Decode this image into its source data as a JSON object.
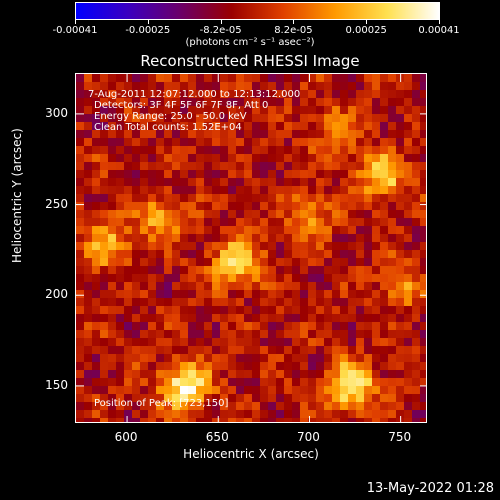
{
  "colorbar": {
    "tick_labels": [
      "-0.00041",
      "-0.00025",
      "-8.2e-05",
      "8.2e-05",
      "0.00025",
      "0.00041"
    ],
    "unit_label": "(photons cm⁻² s⁻¹ asec⁻²)",
    "colors": [
      "#0000ff",
      "#3a00c0",
      "#6a006a",
      "#9a0000",
      "#e04000",
      "#ff9a00",
      "#ffe050",
      "#ffffff"
    ]
  },
  "annotations": {
    "time_range": "7-Aug-2011 12:07:12.000 to 12:13:12.000",
    "detectors": "Detectors: 3F 4F 5F 6F 7F 8F, Att 0",
    "energy_range": "Energy Range: 25.0 - 50.0 keV",
    "clean_counts": "Clean     Total counts: 1.52E+04",
    "peak_position": "Position of Peak:  [723,150]"
  },
  "timestamp": "13-May-2022 01:28",
  "chart_data": {
    "type": "heatmap",
    "title": "Reconstructed RHESSI Image",
    "xlabel": "Heliocentric X (arcsec)",
    "ylabel": "Heliocentric Y (arcsec)",
    "xlim": [
      572,
      765
    ],
    "ylim": [
      129,
      322
    ],
    "x_ticks": [
      600,
      650,
      700,
      750
    ],
    "y_ticks": [
      150,
      200,
      250,
      300
    ],
    "value_range": [
      -0.00041,
      0.00041
    ],
    "peak": [
      723,
      150
    ],
    "sources": [
      {
        "x": 632,
        "y": 150,
        "value": 0.00041
      },
      {
        "x": 723,
        "y": 150,
        "value": 0.00041
      },
      {
        "x": 660,
        "y": 218,
        "value": 0.00035
      },
      {
        "x": 740,
        "y": 265,
        "value": 0.0003
      },
      {
        "x": 590,
        "y": 228,
        "value": 0.00025
      },
      {
        "x": 618,
        "y": 242,
        "value": 0.00022
      },
      {
        "x": 700,
        "y": 245,
        "value": 0.0002
      },
      {
        "x": 715,
        "y": 290,
        "value": 0.00018
      },
      {
        "x": 750,
        "y": 205,
        "value": 0.00016
      }
    ]
  }
}
